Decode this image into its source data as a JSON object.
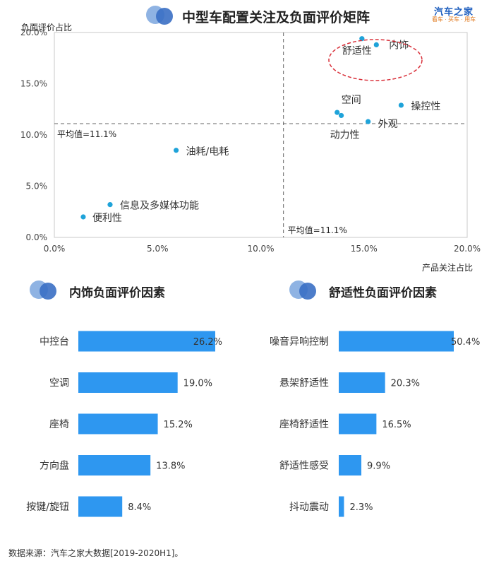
{
  "header": {
    "title": "中型车配置关注及负面评价矩阵",
    "logo_main": "汽车之家",
    "logo_sub": "看车 · 买车 · 用车"
  },
  "footer": {
    "source": "数据来源：汽车之家大数据[2019-2020H1]。"
  },
  "colors": {
    "point": "#1fa3d9",
    "bar": "#2e97f0",
    "title_circle_light": "#8fb3e3",
    "title_circle_dark": "#3a6fc4",
    "callout_ellipse": "#d9303a"
  },
  "chart_data": [
    {
      "type": "scatter",
      "title": "中型车配置关注及负面评价矩阵",
      "xlabel": "产品关注占比",
      "ylabel": "负面评价占比",
      "xlim": [
        0,
        20
      ],
      "ylim": [
        0,
        20
      ],
      "x_ticks": [
        "0.0%",
        "5.0%",
        "10.0%",
        "15.0%",
        "20.0%"
      ],
      "y_ticks": [
        "0.0%",
        "5.0%",
        "10.0%",
        "15.0%",
        "20.0%"
      ],
      "grid": false,
      "points": [
        {
          "label": "舒适性",
          "x": 14.9,
          "y": 19.4
        },
        {
          "label": "内饰",
          "x": 15.6,
          "y": 18.8
        },
        {
          "label": "空间",
          "x": 13.7,
          "y": 12.2
        },
        {
          "label": "操控性",
          "x": 16.8,
          "y": 12.9
        },
        {
          "label": "动力性",
          "x": 13.9,
          "y": 11.9
        },
        {
          "label": "外观",
          "x": 15.2,
          "y": 11.3
        },
        {
          "label": "油耗/电耗",
          "x": 5.9,
          "y": 8.5
        },
        {
          "label": "信息及多媒体功能",
          "x": 2.7,
          "y": 3.2
        },
        {
          "label": "便利性",
          "x": 1.4,
          "y": 2.0
        }
      ],
      "reference_lines": {
        "x_avg": 11.1,
        "y_avg": 11.1,
        "x_avg_label": "平均值=11.1%",
        "y_avg_label": "平均值=11.1%"
      }
    },
    {
      "type": "bar",
      "title": "内饰负面评价因素",
      "categories": [
        "中控台",
        "空调",
        "座椅",
        "方向盘",
        "按键/旋钮"
      ],
      "values": [
        26.2,
        19.0,
        15.2,
        13.8,
        8.4
      ],
      "value_labels": [
        "26.2%",
        "19.0%",
        "15.2%",
        "13.8%",
        "8.4%"
      ],
      "xlim": [
        0,
        26.2
      ]
    },
    {
      "type": "bar",
      "title": "舒适性负面评价因素",
      "categories": [
        "噪音异响控制",
        "悬架舒适性",
        "座椅舒适性",
        "舒适性感受",
        "抖动震动"
      ],
      "values": [
        50.4,
        20.3,
        16.5,
        9.9,
        2.3
      ],
      "value_labels": [
        "50.4%",
        "20.3%",
        "16.5%",
        "9.9%",
        "2.3%"
      ],
      "xlim": [
        0,
        50.4
      ]
    }
  ]
}
